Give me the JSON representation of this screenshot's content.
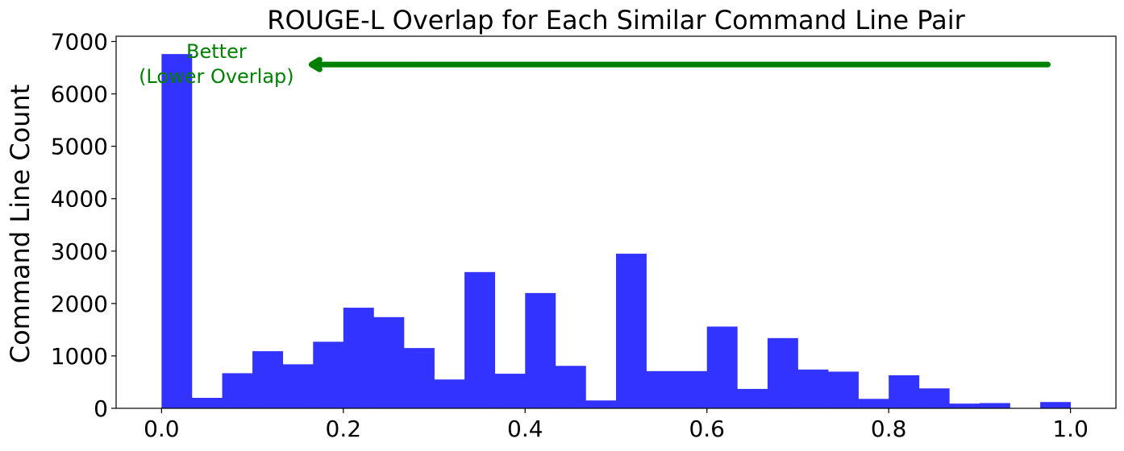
{
  "chart_data": {
    "type": "bar",
    "title": "ROUGE-L Overlap for Each Similar Command Line Pair",
    "xlabel": "",
    "ylabel": "Command Line Count",
    "xlim": [
      -0.05,
      1.05
    ],
    "ylim": [
      0,
      7100
    ],
    "xticks": [
      0.0,
      0.2,
      0.4,
      0.6,
      0.8,
      1.0
    ],
    "xtick_labels": [
      "0.0",
      "0.2",
      "0.4",
      "0.6",
      "0.8",
      "1.0"
    ],
    "yticks": [
      0,
      1000,
      2000,
      3000,
      4000,
      5000,
      6000,
      7000
    ],
    "ytick_labels": [
      "0",
      "1000",
      "2000",
      "3000",
      "4000",
      "5000",
      "6000",
      "7000"
    ],
    "bin_width": 0.0333,
    "bin_starts": [
      0.0,
      0.0333,
      0.0667,
      0.1,
      0.1333,
      0.1667,
      0.2,
      0.2333,
      0.2667,
      0.3,
      0.3333,
      0.3667,
      0.4,
      0.4333,
      0.4667,
      0.5,
      0.5333,
      0.5667,
      0.6,
      0.6333,
      0.6667,
      0.7,
      0.7333,
      0.7667,
      0.8,
      0.8333,
      0.8667,
      0.9,
      0.9333,
      0.9667
    ],
    "values": [
      6760,
      200,
      670,
      1090,
      840,
      1270,
      1920,
      1740,
      1150,
      550,
      2600,
      660,
      2200,
      810,
      150,
      2950,
      710,
      710,
      1560,
      370,
      1340,
      740,
      700,
      180,
      630,
      380,
      90,
      100,
      0,
      120
    ],
    "bar_color": "#3333ff",
    "annotation": {
      "line1": "Better",
      "line2": "(Lower Overlap)",
      "color": "#008000",
      "arrow_from": [
        0.975,
        6560
      ],
      "arrow_to": [
        0.165,
        6560
      ]
    },
    "grid": false,
    "legend": "none"
  }
}
